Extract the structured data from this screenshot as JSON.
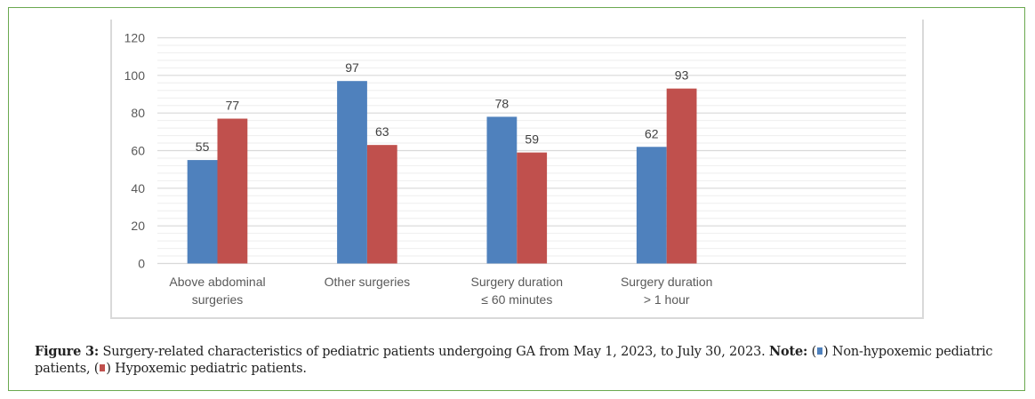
{
  "colors": {
    "non_hypoxemic": "#4F81BD",
    "hypoxemic": "#C0504D",
    "border": "#6AA84F"
  },
  "chart_data": {
    "type": "bar",
    "title": "",
    "xlabel": "",
    "ylabel": "",
    "ylim": [
      0,
      120
    ],
    "yticks": [
      0,
      20,
      40,
      60,
      80,
      100,
      120
    ],
    "grid": true,
    "legend": "none (described in caption)",
    "categories": [
      [
        "Above abdominal",
        "surgeries"
      ],
      [
        "Other surgeries"
      ],
      [
        "Surgery duration",
        "≤ 60 minutes"
      ],
      [
        "Surgery duration",
        "> 1 hour"
      ]
    ],
    "series": [
      {
        "name": "Non-hypoxemic pediatric patients",
        "color": "#4F81BD",
        "values": [
          55,
          97,
          78,
          62
        ]
      },
      {
        "name": "Hypoxemic pediatric patients",
        "color": "#C0504D",
        "values": [
          77,
          63,
          59,
          93
        ]
      }
    ]
  },
  "caption": {
    "figure_label": "Figure 3:",
    "text": " Surgery-related characteristics of pediatric patients undergoing GA from May 1, 2023, to July 30, 2023. ",
    "note_label": "Note:",
    "legend_1_open": " (",
    "legend_1_close": ") Non-hypoxemic pediatric patients, (",
    "legend_2_close": ") Hypoxemic pediatric patients."
  }
}
